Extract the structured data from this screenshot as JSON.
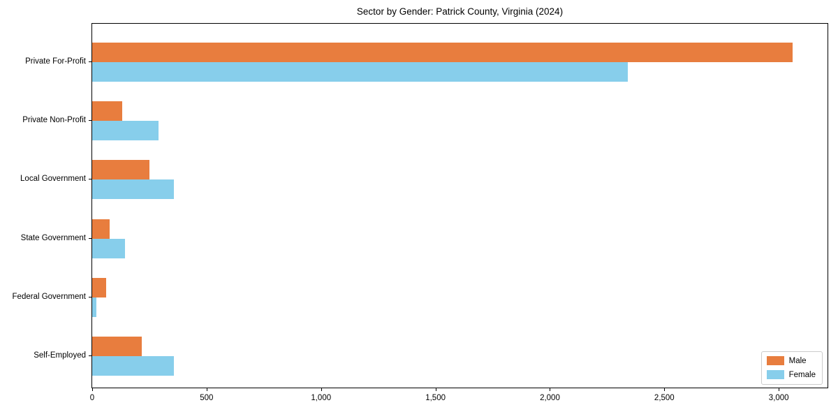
{
  "figure": {
    "title": "Sector by Gender: Patrick County, Virginia (2024)"
  },
  "chart_data": {
    "type": "bar",
    "orientation": "horizontal",
    "title": "Sector by Gender: Patrick County, Virginia (2024)",
    "xlabel": "",
    "ylabel": "",
    "categories": [
      "Private For-Profit",
      "Private Non-Profit",
      "Local Government",
      "State Government",
      "Federal Government",
      "Self-Employed"
    ],
    "series": [
      {
        "name": "Male",
        "color": "#e87d3e",
        "values": [
          3060,
          130,
          251,
          75,
          61,
          218
        ]
      },
      {
        "name": "Female",
        "color": "#87ceeb",
        "values": [
          2339,
          290,
          358,
          142,
          17,
          358
        ]
      }
    ],
    "xlim": [
      0,
      3213
    ],
    "xticks": [
      0,
      500,
      1000,
      1500,
      2000,
      2500,
      3000
    ],
    "xtick_labels": [
      "0",
      "500",
      "1,000",
      "1,500",
      "2,000",
      "2,500",
      "3,000"
    ],
    "grid": false,
    "legend": {
      "position": "lower right",
      "entries": [
        "Male",
        "Female"
      ]
    }
  }
}
